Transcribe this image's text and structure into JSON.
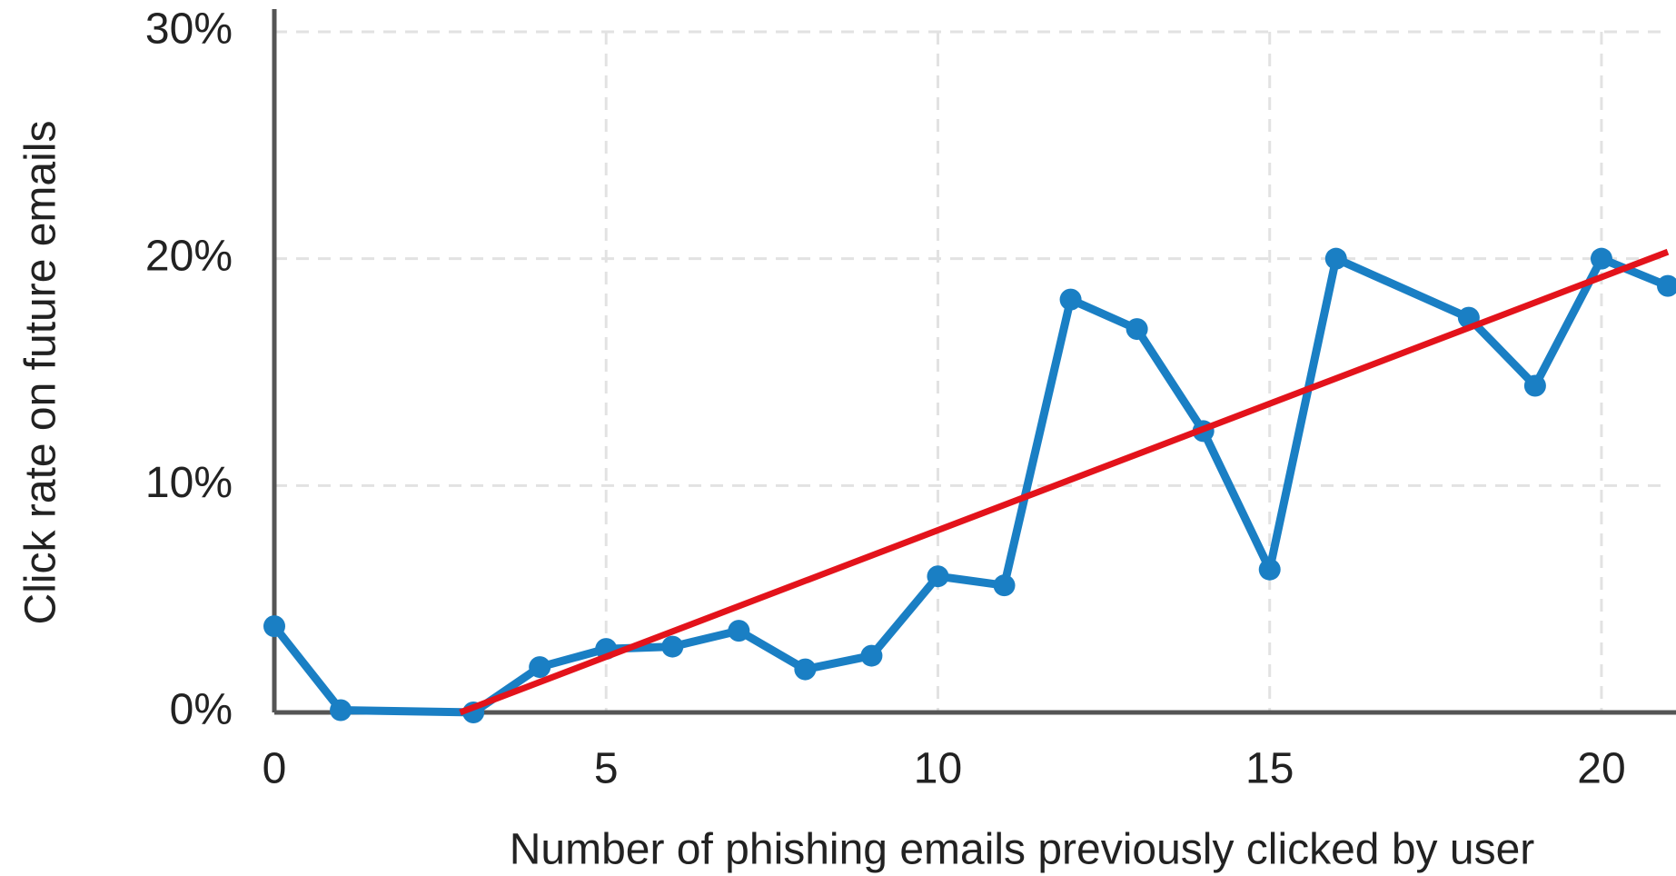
{
  "chart_data": {
    "type": "line",
    "xlabel": "Number of phishing emails previously clicked by user",
    "ylabel": "Click rate on future emails",
    "series": [
      {
        "color": "#1a7fc4",
        "x": [
          0,
          1,
          3,
          4,
          5,
          6,
          7,
          8,
          9,
          10,
          11,
          12,
          13,
          14,
          15,
          16,
          18,
          19,
          20,
          21
        ],
        "values": [
          3.8,
          0.1,
          0.0,
          2.0,
          2.8,
          2.9,
          3.6,
          1.9,
          2.5,
          6.0,
          5.6,
          18.2,
          16.9,
          12.4,
          6.3,
          20.0,
          17.4,
          14.4,
          20.0,
          18.8
        ],
        "markers": true
      },
      {
        "color": "#e3131b",
        "x": [
          2.8,
          21
        ],
        "values": [
          0,
          20.3
        ],
        "markers": false
      }
    ],
    "xlim": [
      0,
      21
    ],
    "xticks": [
      0,
      5,
      10,
      15,
      20
    ],
    "ylim": [
      0,
      30
    ],
    "yticks": [
      {
        "value": 0,
        "label": "0%"
      },
      {
        "value": 10,
        "label": "10%"
      },
      {
        "value": 20,
        "label": "20%"
      },
      {
        "value": 30,
        "label": "30%"
      }
    ],
    "grid": true
  }
}
